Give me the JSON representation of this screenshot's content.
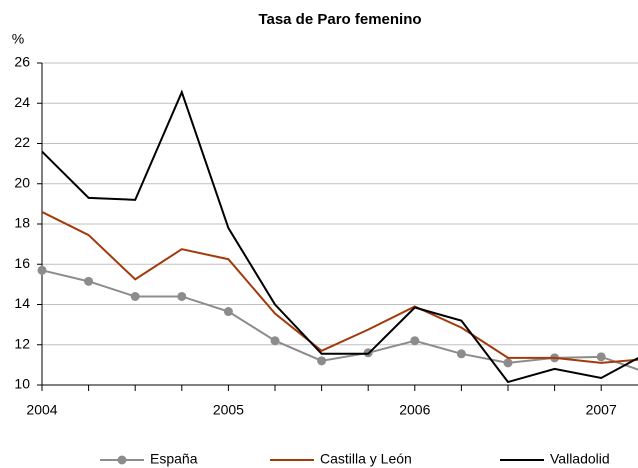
{
  "chart_data": {
    "type": "line",
    "title": "Tasa de Paro femenino",
    "y_label": "%",
    "categories": [
      "2004",
      null,
      null,
      null,
      "2005",
      null,
      null,
      null,
      "2006",
      null,
      null,
      null,
      "2007",
      null
    ],
    "series": [
      {
        "name": "España",
        "color": "#8c8c8c",
        "marker": "circle",
        "values": [
          15.7,
          15.15,
          14.4,
          14.4,
          13.65,
          12.2,
          11.2,
          11.6,
          12.2,
          11.55,
          11.1,
          11.35,
          11.4,
          10.6
        ]
      },
      {
        "name": "Castilla y León",
        "color": "#a33a0b",
        "values": [
          18.6,
          17.45,
          15.25,
          16.75,
          16.25,
          13.55,
          11.7,
          12.75,
          13.9,
          12.85,
          11.35,
          11.35,
          11.1,
          11.3
        ]
      },
      {
        "name": "Valladolid",
        "color": "#000000",
        "values": [
          21.6,
          19.3,
          19.2,
          24.55,
          17.8,
          14.0,
          11.55,
          11.55,
          13.85,
          13.2,
          10.15,
          10.8,
          10.35,
          11.6
        ]
      }
    ],
    "ylim": [
      10,
      26
    ],
    "yticks": [
      10,
      12,
      14,
      16,
      18,
      20,
      22,
      24,
      26
    ],
    "grid": true,
    "legend": "bottom"
  }
}
